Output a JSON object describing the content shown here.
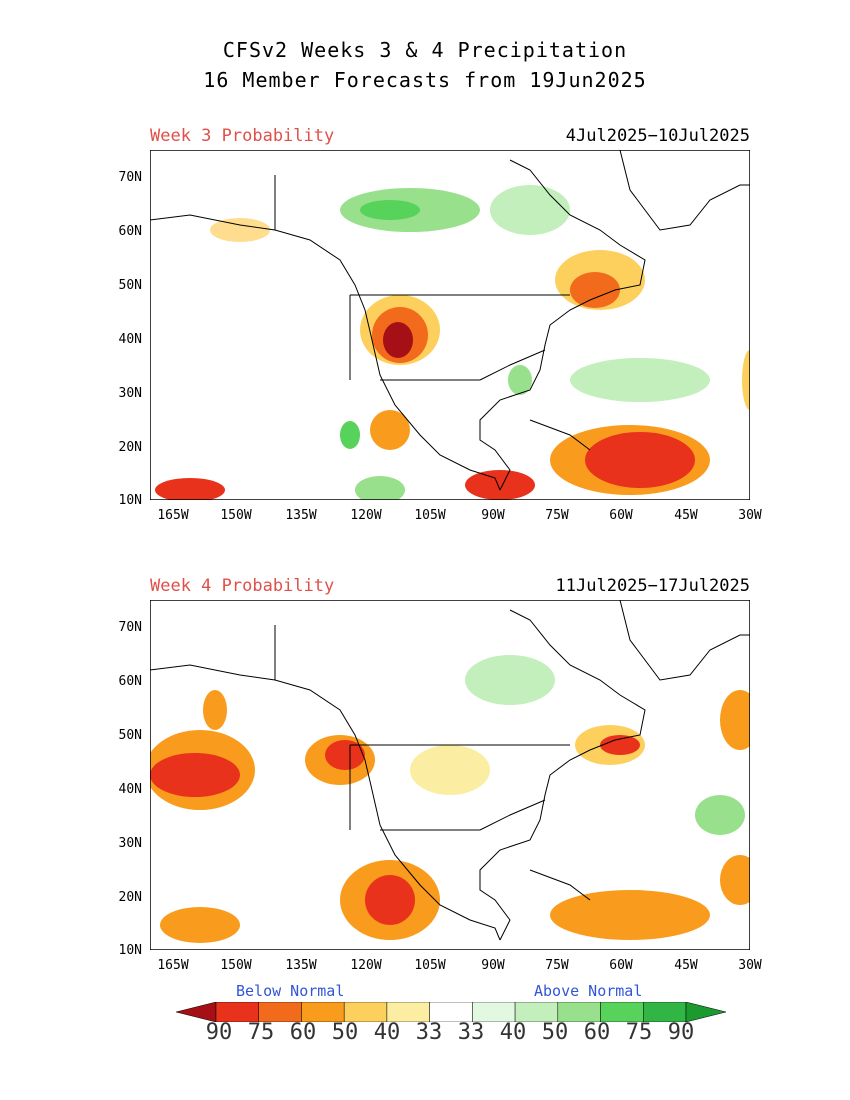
{
  "title": {
    "line1": "CFSv2 Weeks 3 & 4 Precipitation",
    "line2": "16 Member Forecasts from 19Jun2025"
  },
  "panels": [
    {
      "label": "Week 3 Probability",
      "dates": "4Jul2025−10Jul2025"
    },
    {
      "label": "Week 4 Probability",
      "dates": "11Jul2025−17Jul2025"
    }
  ],
  "lat_labels": [
    "70N",
    "60N",
    "50N",
    "40N",
    "30N",
    "20N",
    "10N"
  ],
  "lon_labels": [
    "165W",
    "150W",
    "135W",
    "120W",
    "105W",
    "90W",
    "75W",
    "60W",
    "45W",
    "30W"
  ],
  "legend": {
    "below_label": "Below Normal",
    "above_label": "Above Normal",
    "numbers": [
      "90",
      "75",
      "60",
      "50",
      "40",
      "33",
      "33",
      "40",
      "50",
      "60",
      "75",
      "90"
    ],
    "colors": [
      "#a50f15",
      "#e8321c",
      "#f26a1b",
      "#f99b1c",
      "#fdd05e",
      "#fbeea2",
      "#ffffff",
      "#e3f8e0",
      "#c2efbb",
      "#98e08c",
      "#57d25a",
      "#31b645",
      "#1b9a2f"
    ]
  }
}
